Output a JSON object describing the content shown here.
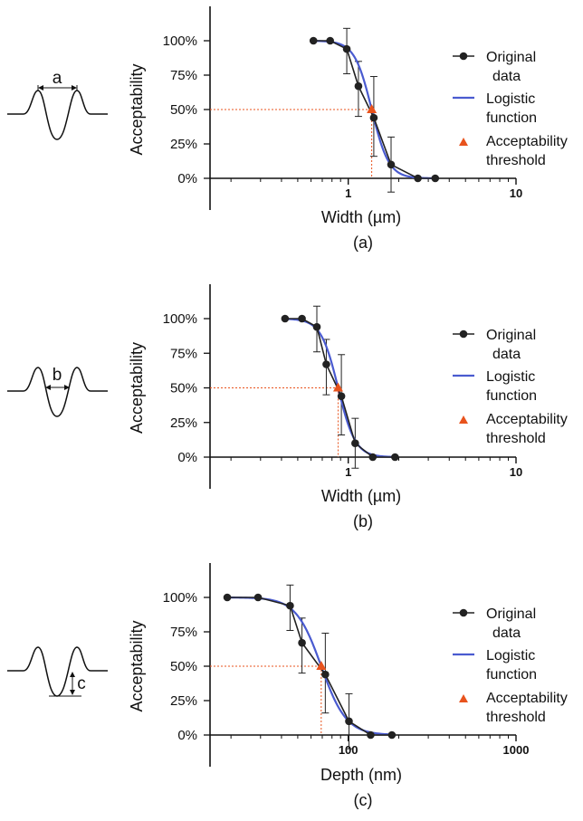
{
  "colors": {
    "data": "#222222",
    "logistic": "#4a5bd0",
    "threshold": "#e8531d",
    "axis": "#111111"
  },
  "legend": {
    "original_line1": "Original",
    "original_line2": "data",
    "logistic_line1": "Logistic",
    "logistic_line2": "function",
    "threshold_line1": "Acceptability",
    "threshold_line2": "threshold"
  },
  "chart_data": [
    {
      "type": "line",
      "panel": "(a)",
      "profile_label": "a",
      "xlabel": "Width (µm)",
      "ylabel": "Acceptability",
      "xscale": "log",
      "xlim": [
        0.15,
        10
      ],
      "ylim": [
        0,
        100
      ],
      "x_ticks": [
        "1",
        "10"
      ],
      "y_ticks": [
        "0%",
        "25%",
        "50%",
        "75%",
        "100%"
      ],
      "legend_position": "right",
      "series": [
        {
          "name": "Original data",
          "x": [
            0.62,
            0.78,
            0.98,
            1.15,
            1.42,
            1.8,
            2.6,
            3.3
          ],
          "y": [
            100,
            100,
            94,
            67,
            44,
            10,
            0,
            0
          ],
          "err_low": [
            0,
            0,
            18,
            22,
            28,
            20,
            0,
            0
          ],
          "err_high": [
            0,
            0,
            15,
            18,
            30,
            20,
            0,
            0
          ]
        },
        {
          "name": "Logistic function",
          "x0": 1.38,
          "slope": 8.5
        }
      ],
      "threshold": {
        "x": 1.38,
        "y": 50
      }
    },
    {
      "type": "line",
      "panel": "(b)",
      "profile_label": "b",
      "xlabel": "Width (µm)",
      "ylabel": "Acceptability",
      "xscale": "log",
      "xlim": [
        0.15,
        10
      ],
      "ylim": [
        0,
        100
      ],
      "x_ticks": [
        "1",
        "10"
      ],
      "y_ticks": [
        "0%",
        "25%",
        "50%",
        "75%",
        "100%"
      ],
      "legend_position": "right",
      "series": [
        {
          "name": "Original data",
          "x": [
            0.42,
            0.53,
            0.65,
            0.74,
            0.91,
            1.1,
            1.4,
            1.9
          ],
          "y": [
            100,
            100,
            94,
            67,
            44,
            10,
            0,
            0
          ],
          "err_low": [
            0,
            0,
            18,
            22,
            28,
            18,
            0,
            0
          ],
          "err_high": [
            0,
            0,
            15,
            18,
            30,
            18,
            0,
            0
          ]
        },
        {
          "name": "Logistic function",
          "x0": 0.87,
          "slope": 8.5
        }
      ],
      "threshold": {
        "x": 0.87,
        "y": 50
      }
    },
    {
      "type": "line",
      "panel": "(c)",
      "profile_label": "c",
      "xlabel": "Depth (nm)",
      "ylabel": "Acceptability",
      "xscale": "log",
      "xlim": [
        15,
        1000
      ],
      "ylim": [
        0,
        100
      ],
      "x_ticks": [
        "100",
        "1000"
      ],
      "y_ticks": [
        "0%",
        "25%",
        "50%",
        "75%",
        "100%"
      ],
      "legend_position": "right",
      "series": [
        {
          "name": "Original data",
          "x": [
            19,
            29,
            45,
            53,
            73,
            101,
            136,
            182
          ],
          "y": [
            100,
            100,
            94,
            67,
            44,
            10,
            0,
            0
          ],
          "err_low": [
            0,
            0,
            18,
            22,
            28,
            20,
            0,
            0
          ],
          "err_high": [
            0,
            0,
            15,
            18,
            30,
            20,
            0,
            0
          ]
        },
        {
          "name": "Logistic function",
          "x0": 69,
          "slope": 5.8
        }
      ],
      "threshold": {
        "x": 69,
        "y": 50
      }
    }
  ]
}
